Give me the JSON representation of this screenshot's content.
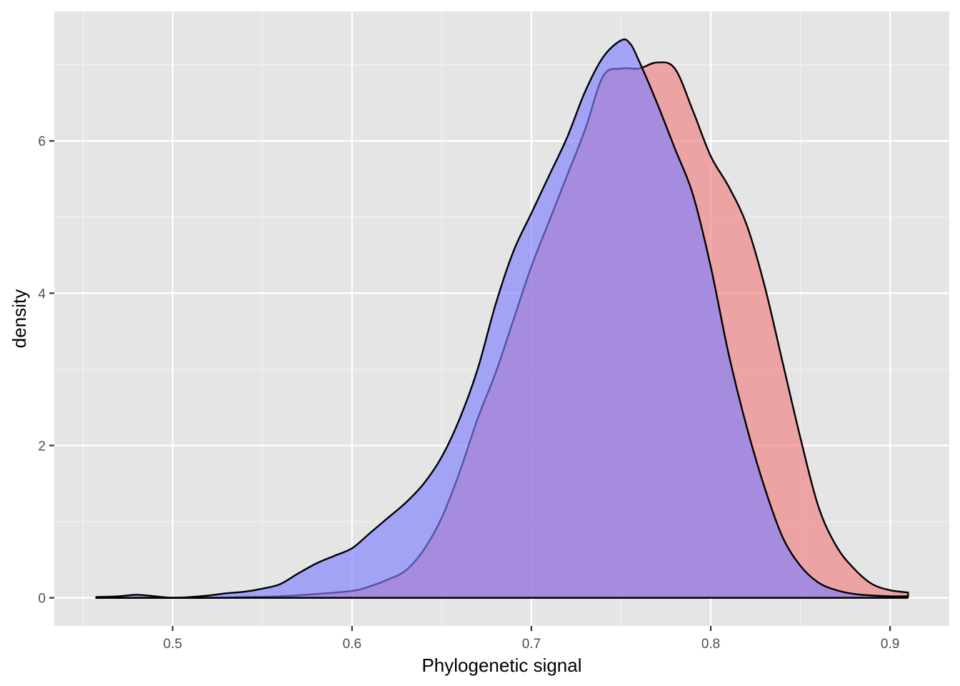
{
  "chart_data": {
    "type": "area",
    "title": "",
    "xlabel": "Phylogenetic signal",
    "ylabel": "density",
    "xlim": [
      0.434,
      0.933
    ],
    "ylim": [
      -0.37,
      7.7
    ],
    "x_ticks": [
      0.5,
      0.6,
      0.7,
      0.8,
      0.9
    ],
    "x_tick_labels": [
      "0.5",
      "0.6",
      "0.7",
      "0.8",
      "0.9"
    ],
    "y_ticks": [
      0,
      2,
      4,
      6
    ],
    "y_tick_labels": [
      "0",
      "2",
      "4",
      "6"
    ],
    "grid": true,
    "legend": "none",
    "background": "#e5e5e5",
    "series": [
      {
        "color": "#f08080",
        "x": [
          0.457,
          0.48,
          0.5,
          0.52,
          0.54,
          0.56,
          0.58,
          0.6,
          0.61,
          0.62,
          0.63,
          0.64,
          0.65,
          0.66,
          0.67,
          0.68,
          0.69,
          0.7,
          0.71,
          0.72,
          0.73,
          0.74,
          0.75,
          0.76,
          0.77,
          0.78,
          0.79,
          0.8,
          0.81,
          0.82,
          0.83,
          0.84,
          0.85,
          0.86,
          0.87,
          0.88,
          0.89,
          0.9,
          0.91
        ],
        "y": [
          0.0,
          0.0,
          0.0,
          0.0,
          0.01,
          0.02,
          0.05,
          0.09,
          0.15,
          0.24,
          0.36,
          0.63,
          1.05,
          1.65,
          2.35,
          2.95,
          3.65,
          4.35,
          4.95,
          5.55,
          6.15,
          6.85,
          6.95,
          6.95,
          7.03,
          6.95,
          6.4,
          5.8,
          5.4,
          4.9,
          4.1,
          3.1,
          2.1,
          1.2,
          0.68,
          0.38,
          0.18,
          0.1,
          0.07
        ]
      },
      {
        "color": "#7f7fff",
        "x": [
          0.457,
          0.47,
          0.48,
          0.49,
          0.5,
          0.51,
          0.52,
          0.53,
          0.54,
          0.55,
          0.56,
          0.57,
          0.58,
          0.59,
          0.6,
          0.61,
          0.62,
          0.63,
          0.64,
          0.65,
          0.66,
          0.67,
          0.68,
          0.69,
          0.7,
          0.71,
          0.72,
          0.73,
          0.74,
          0.75,
          0.755,
          0.76,
          0.77,
          0.78,
          0.79,
          0.8,
          0.81,
          0.82,
          0.83,
          0.84,
          0.85,
          0.86,
          0.87,
          0.88,
          0.89,
          0.9,
          0.91
        ],
        "y": [
          0.01,
          0.02,
          0.04,
          0.02,
          0.0,
          0.01,
          0.03,
          0.06,
          0.08,
          0.12,
          0.18,
          0.32,
          0.45,
          0.55,
          0.65,
          0.85,
          1.05,
          1.25,
          1.5,
          1.85,
          2.35,
          3.0,
          3.85,
          4.55,
          5.05,
          5.55,
          6.05,
          6.65,
          7.1,
          7.32,
          7.28,
          7.05,
          6.5,
          5.9,
          5.3,
          4.35,
          3.2,
          2.25,
          1.45,
          0.8,
          0.42,
          0.2,
          0.1,
          0.05,
          0.03,
          0.02,
          0.02
        ]
      }
    ]
  }
}
